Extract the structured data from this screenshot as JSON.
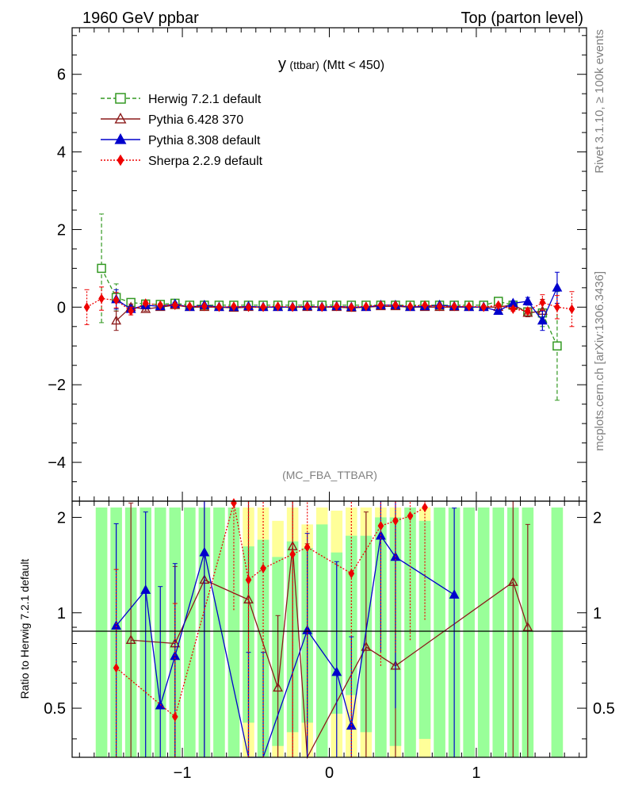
{
  "header": {
    "left": "1960 GeV ppbar",
    "right": "Top (parton level)"
  },
  "side_right": {
    "rivet": "Rivet 3.1.10, ≥ 100k events",
    "mcplots": "mcplots.cern.ch [arXiv:1306.3436]"
  },
  "chart_data": [
    {
      "type": "scatter",
      "title": "y (ttbar) (Mtt < 450)",
      "title_main": "y",
      "title_small": "(ttbar)",
      "title_tail": "(Mtt < 450)",
      "watermark": "(MC_FBA_TTBAR)",
      "xlim": [
        -1.75,
        1.75
      ],
      "ylim": [
        -5,
        7.2
      ],
      "yticks": [
        -4,
        -2,
        0,
        2,
        4,
        6
      ],
      "ytick_labels": [
        "−4",
        "−2",
        "0",
        "2",
        "4",
        "6"
      ],
      "legend_position": "top-left",
      "series": [
        {
          "name": "Herwig 7.2.1 default",
          "color": "#339922",
          "marker": "open-square",
          "line": "dashed",
          "x": [
            -1.55,
            -1.45,
            -1.35,
            -1.25,
            -1.15,
            -1.05,
            -0.95,
            -0.85,
            -0.75,
            -0.65,
            -0.55,
            -0.45,
            -0.35,
            -0.25,
            -0.15,
            -0.05,
            0.05,
            0.15,
            0.25,
            0.35,
            0.45,
            0.55,
            0.65,
            0.75,
            0.85,
            0.95,
            1.05,
            1.15,
            1.25,
            1.35,
            1.45,
            1.55
          ],
          "y": [
            1.0,
            0.25,
            0.12,
            0.08,
            0.07,
            0.1,
            0.05,
            0.05,
            0.05,
            0.05,
            0.05,
            0.05,
            0.05,
            0.05,
            0.05,
            0.05,
            0.05,
            0.05,
            0.05,
            0.05,
            0.05,
            0.05,
            0.05,
            0.05,
            0.05,
            0.05,
            0.05,
            0.15,
            0.05,
            -0.12,
            -0.15,
            -1.0
          ],
          "yerr": [
            1.4,
            0.35,
            0.1,
            0.06,
            0.05,
            0.05,
            0.03,
            0.03,
            0.03,
            0.03,
            0.03,
            0.03,
            0.03,
            0.03,
            0.03,
            0.03,
            0.03,
            0.03,
            0.03,
            0.03,
            0.03,
            0.03,
            0.03,
            0.03,
            0.03,
            0.03,
            0.03,
            0.05,
            0.06,
            0.1,
            0.35,
            1.4
          ]
        },
        {
          "name": "Pythia 6.428 370",
          "color": "#8b1a1a",
          "marker": "open-triangle",
          "line": "solid",
          "x": [
            -1.45,
            -1.35,
            -1.25,
            -1.15,
            -1.05,
            -0.95,
            -0.85,
            -0.75,
            -0.65,
            -0.55,
            -0.45,
            -0.35,
            -0.25,
            -0.15,
            -0.05,
            0.05,
            0.15,
            0.25,
            0.35,
            0.45,
            0.55,
            0.65,
            0.75,
            0.85,
            0.95,
            1.05,
            1.15,
            1.25,
            1.35,
            1.45
          ],
          "y": [
            -0.35,
            0.0,
            -0.05,
            0.0,
            0.05,
            0.0,
            0.0,
            0.0,
            -0.02,
            0.0,
            0.0,
            0.0,
            0.0,
            0.0,
            0.0,
            0.0,
            -0.02,
            0.0,
            0.02,
            0.02,
            0.0,
            0.0,
            0.0,
            0.0,
            0.0,
            0.0,
            0.0,
            0.06,
            -0.15,
            -0.1
          ],
          "yerr": [
            0.25,
            0.08,
            0.05,
            0.04,
            0.04,
            0.03,
            0.03,
            0.03,
            0.03,
            0.03,
            0.03,
            0.03,
            0.03,
            0.03,
            0.03,
            0.03,
            0.03,
            0.03,
            0.03,
            0.03,
            0.03,
            0.03,
            0.03,
            0.03,
            0.03,
            0.03,
            0.04,
            0.06,
            0.1,
            0.3
          ]
        },
        {
          "name": "Pythia 8.308 default",
          "color": "#0000cc",
          "marker": "filled-triangle",
          "line": "solid",
          "x": [
            -1.45,
            -1.35,
            -1.25,
            -1.15,
            -1.05,
            -0.95,
            -0.85,
            -0.75,
            -0.65,
            -0.55,
            -0.45,
            -0.35,
            -0.25,
            -0.15,
            -0.05,
            0.05,
            0.15,
            0.25,
            0.35,
            0.45,
            0.55,
            0.65,
            0.75,
            0.85,
            0.95,
            1.05,
            1.15,
            1.25,
            1.35,
            1.45,
            1.55
          ],
          "y": [
            0.2,
            -0.05,
            0.05,
            0.02,
            0.08,
            0.0,
            0.05,
            0.0,
            0.0,
            0.02,
            0.0,
            0.0,
            0.0,
            0.02,
            0.0,
            0.02,
            0.0,
            0.0,
            0.05,
            0.05,
            0.0,
            0.02,
            0.05,
            0.02,
            0.0,
            0.0,
            -0.1,
            0.1,
            0.15,
            -0.35,
            0.5
          ],
          "yerr": [
            0.25,
            0.08,
            0.05,
            0.04,
            0.04,
            0.03,
            0.03,
            0.03,
            0.03,
            0.03,
            0.03,
            0.03,
            0.03,
            0.03,
            0.03,
            0.03,
            0.03,
            0.03,
            0.03,
            0.03,
            0.03,
            0.03,
            0.03,
            0.03,
            0.03,
            0.03,
            0.04,
            0.06,
            0.1,
            0.25,
            0.4
          ]
        },
        {
          "name": "Sherpa 2.2.9 default",
          "color": "#ee0000",
          "marker": "filled-diamond",
          "line": "dotted",
          "x": [
            -1.65,
            -1.55,
            -1.45,
            -1.35,
            -1.25,
            -1.15,
            -1.05,
            -0.95,
            -0.85,
            -0.75,
            -0.65,
            -0.55,
            -0.45,
            -0.35,
            -0.25,
            -0.15,
            -0.05,
            0.05,
            0.15,
            0.25,
            0.35,
            0.45,
            0.55,
            0.65,
            0.75,
            0.85,
            0.95,
            1.05,
            1.15,
            1.25,
            1.35,
            1.45,
            1.55,
            1.65
          ],
          "y": [
            0.0,
            0.22,
            0.18,
            -0.1,
            0.1,
            0.05,
            0.05,
            0.02,
            0.02,
            0.0,
            0.02,
            0.0,
            0.0,
            0.02,
            0.0,
            0.02,
            0.0,
            0.02,
            0.0,
            0.02,
            0.05,
            0.05,
            0.02,
            0.05,
            0.02,
            0.02,
            0.02,
            0.0,
            0.05,
            -0.05,
            -0.1,
            0.12,
            0.0,
            -0.05
          ],
          "yerr": [
            0.45,
            0.3,
            0.2,
            0.1,
            0.05,
            0.04,
            0.04,
            0.03,
            0.03,
            0.03,
            0.03,
            0.03,
            0.03,
            0.03,
            0.03,
            0.03,
            0.03,
            0.03,
            0.03,
            0.03,
            0.03,
            0.03,
            0.03,
            0.03,
            0.03,
            0.03,
            0.03,
            0.03,
            0.04,
            0.05,
            0.08,
            0.2,
            0.3,
            0.45
          ]
        }
      ]
    },
    {
      "type": "line",
      "ylabel": "Ratio to Herwig 7.2.1 default",
      "xlim": [
        -1.75,
        1.75
      ],
      "ylim": [
        0.35,
        2.25
      ],
      "log_y": true,
      "reference_line": 1,
      "yticks": [
        0.5,
        1,
        2
      ],
      "ytick_labels": [
        "0.5",
        "1",
        "2"
      ],
      "xticks": [
        -1,
        0,
        1
      ],
      "xtick_labels": [
        "−1",
        "0",
        "1"
      ],
      "bands": {
        "bin_edges": [
          -1.6,
          -1.5,
          -1.4,
          -1.3,
          -1.2,
          -1.1,
          -1.0,
          -0.9,
          -0.8,
          -0.7,
          -0.6,
          -0.5,
          -0.4,
          -0.3,
          -0.2,
          -0.1,
          0.0,
          0.1,
          0.2,
          0.3,
          0.4,
          0.5,
          0.6,
          0.7,
          0.8,
          0.9,
          1.0,
          1.1,
          1.2,
          1.3,
          1.4,
          1.5,
          1.6
        ],
        "green": [
          [
            0.35,
            2.25
          ],
          [
            0.35,
            2.25
          ],
          [
            0.35,
            2.25
          ],
          [
            0.35,
            2.25
          ],
          [
            0.35,
            2.25
          ],
          [
            0.35,
            2.25
          ],
          [
            0.35,
            2.25
          ],
          [
            0.35,
            2.25
          ],
          [
            0.35,
            2.25
          ],
          [
            0.35,
            2.25
          ],
          [
            0.45,
            1.62
          ],
          [
            0.35,
            1.7
          ],
          [
            0.38,
            1.5
          ],
          [
            0.42,
            1.68
          ],
          [
            0.45,
            1.6
          ],
          [
            0.35,
            1.9
          ],
          [
            0.48,
            1.55
          ],
          [
            0.55,
            1.75
          ],
          [
            0.42,
            1.75
          ],
          [
            0.35,
            2.0
          ],
          [
            0.38,
            2.0
          ],
          [
            0.35,
            2.25
          ],
          [
            0.4,
            1.95
          ],
          [
            0.35,
            2.25
          ],
          [
            0.35,
            2.25
          ],
          [
            0.35,
            2.25
          ],
          [
            0.35,
            2.25
          ],
          [
            0.35,
            2.25
          ],
          [
            0.35,
            2.25
          ],
          [
            0.35,
            2.25
          ],
          [
            null,
            null
          ],
          [
            0.35,
            2.25
          ]
        ],
        "yellow": [
          [
            0.35,
            2.25
          ],
          [
            0.35,
            2.25
          ],
          [
            0.35,
            2.25
          ],
          [
            0.35,
            2.25
          ],
          [
            0.35,
            2.25
          ],
          [
            0.35,
            2.25
          ],
          [
            0.35,
            2.25
          ],
          [
            0.35,
            2.25
          ],
          [
            0.35,
            2.25
          ],
          [
            0.35,
            2.25
          ],
          [
            0.35,
            2.25
          ],
          [
            0.35,
            2.25
          ],
          [
            0.35,
            1.95
          ],
          [
            0.35,
            2.25
          ],
          [
            0.35,
            1.9
          ],
          [
            0.35,
            2.25
          ],
          [
            0.35,
            2.1
          ],
          [
            0.35,
            2.25
          ],
          [
            0.35,
            2.25
          ],
          [
            0.35,
            2.25
          ],
          [
            0.35,
            2.25
          ],
          [
            0.35,
            2.25
          ],
          [
            0.35,
            2.25
          ],
          [
            0.35,
            2.25
          ],
          [
            0.35,
            2.25
          ],
          [
            0.35,
            2.25
          ],
          [
            0.35,
            2.25
          ],
          [
            0.35,
            2.25
          ],
          [
            0.35,
            2.25
          ],
          [
            0.35,
            2.25
          ],
          [
            null,
            null
          ],
          [
            0.35,
            2.25
          ]
        ]
      },
      "series": [
        {
          "name": "Pythia 6.428 370",
          "color": "#8b1a1a",
          "marker": "open-triangle",
          "line": "solid",
          "x": [
            -1.35,
            -1.05,
            -0.85,
            -0.55,
            -0.35,
            -0.25,
            -0.15,
            0.25,
            0.45,
            1.25,
            1.35
          ],
          "y": [
            0.82,
            0.8,
            1.27,
            1.1,
            0.58,
            1.62,
            0.35,
            0.78,
            0.68,
            1.25,
            0.9
          ],
          "yerr": [
            1.4,
            0.6,
            1.2,
            1.2,
            0.4,
            1.3,
            1.3,
            1.3,
            1.3,
            1.0,
            1.0
          ]
        },
        {
          "name": "Pythia 8.308 default",
          "color": "#0000cc",
          "marker": "filled-triangle",
          "line": "solid",
          "x": [
            -1.45,
            -1.25,
            -1.15,
            -1.05,
            -0.85,
            -0.55,
            -0.45,
            -0.15,
            0.05,
            0.15,
            0.35,
            0.45,
            0.85
          ],
          "y": [
            0.91,
            1.18,
            0.51,
            0.73,
            1.55,
            0.35,
            0.35,
            0.88,
            0.65,
            0.44,
            1.75,
            1.5,
            1.14
          ],
          "yerr": [
            1.0,
            0.9,
            0.7,
            0.7,
            1.2,
            0.4,
            0.4,
            0.9,
            0.8,
            0.4,
            1.0,
            1.0,
            1.0
          ]
        },
        {
          "name": "Sherpa 2.2.9 default",
          "color": "#ee0000",
          "marker": "filled-diamond",
          "line": "dotted",
          "x": [
            -1.45,
            -1.05,
            -0.65,
            -0.55,
            -0.45,
            -0.25,
            -0.15,
            0.15,
            0.35,
            0.45,
            0.55,
            0.65
          ],
          "y": [
            0.67,
            0.47,
            2.22,
            1.27,
            1.38,
            1.53,
            1.61,
            1.33,
            1.88,
            1.95,
            2.02,
            2.15
          ],
          "yerr": [
            0.7,
            0.6,
            1.2,
            1.2,
            1.2,
            1.2,
            1.2,
            1.2,
            1.2,
            1.2,
            1.2,
            1.2
          ]
        }
      ]
    }
  ]
}
